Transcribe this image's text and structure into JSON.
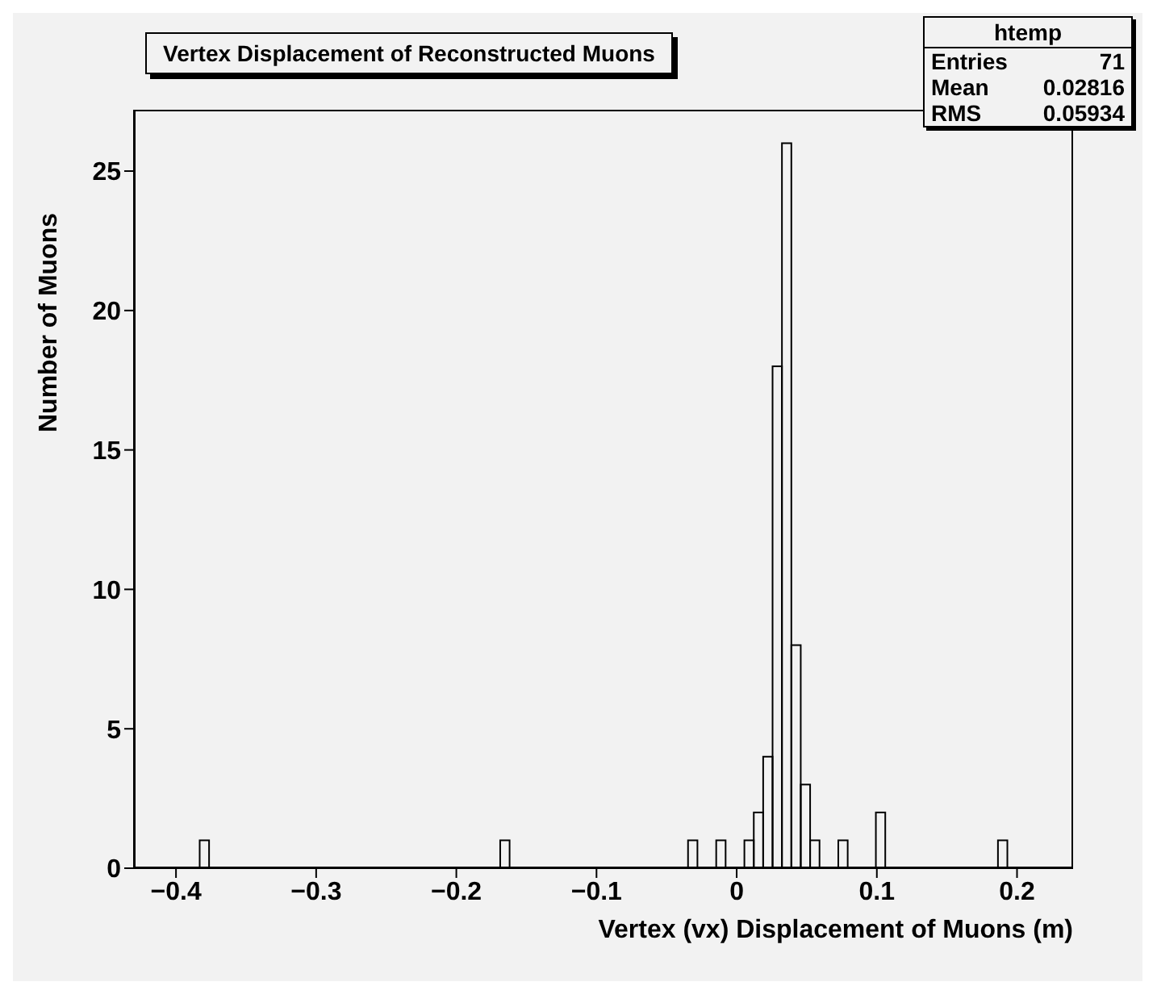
{
  "chart_data": {
    "type": "histogram",
    "title": "Vertex Displacement of Reconstructed Muons",
    "xlabel": "Vertex (vx) Displacement of Muons (m)",
    "ylabel": "Number of Muons",
    "bins": [
      -0.43,
      -0.4233,
      -0.4166,
      -0.4099,
      -0.4032,
      -0.3965,
      -0.3898,
      -0.3831,
      -0.3764,
      -0.3697,
      -0.363,
      -0.3563,
      -0.3496,
      -0.3429,
      -0.3362,
      -0.3295,
      -0.3228,
      -0.3161,
      -0.3094,
      -0.3027,
      -0.296,
      -0.2893,
      -0.2826,
      -0.2759,
      -0.2692,
      -0.2625,
      -0.2558,
      -0.2491,
      -0.2424,
      -0.2357,
      -0.229,
      -0.2223,
      -0.2156,
      -0.2089,
      -0.2022,
      -0.1955,
      -0.1888,
      -0.1821,
      -0.1754,
      -0.1687,
      -0.162,
      -0.1553,
      -0.1486,
      -0.1419,
      -0.1352,
      -0.1285,
      -0.1218,
      -0.1151,
      -0.1084,
      -0.1017,
      -0.095,
      -0.0883,
      -0.0816,
      -0.0749,
      -0.0682,
      -0.0615,
      -0.0548,
      -0.0481,
      -0.0414,
      -0.0347,
      -0.028,
      -0.0213,
      -0.0146,
      -0.0079,
      -0.0012,
      0.0055,
      0.0122,
      0.0189,
      0.0256,
      0.0323,
      0.039,
      0.0457,
      0.0524,
      0.0591,
      0.0658,
      0.0725,
      0.0792,
      0.0859,
      0.0926,
      0.0993,
      0.106,
      0.1127,
      0.1194,
      0.1261,
      0.1328,
      0.1395,
      0.1462,
      0.1529,
      0.1596,
      0.1663,
      0.173,
      0.1797,
      0.1864,
      0.1931,
      0.1998,
      0.2065,
      0.2132,
      0.2199,
      0.2266,
      0.2333,
      0.24
    ],
    "values": [
      0,
      0,
      0,
      0,
      0,
      0,
      0,
      1,
      0,
      0,
      0,
      0,
      0,
      0,
      0,
      0,
      0,
      0,
      0,
      0,
      0,
      0,
      0,
      0,
      0,
      0,
      0,
      0,
      0,
      0,
      0,
      0,
      0,
      0,
      0,
      0,
      0,
      0,
      0,
      1,
      0,
      0,
      0,
      0,
      0,
      0,
      0,
      0,
      0,
      0,
      0,
      0,
      0,
      0,
      0,
      0,
      0,
      0,
      0,
      1,
      0,
      0,
      1,
      0,
      0,
      1,
      2,
      4,
      18,
      26,
      8,
      3,
      1,
      0,
      0,
      1,
      0,
      0,
      0,
      2,
      0,
      0,
      0,
      0,
      0,
      0,
      0,
      0,
      0,
      0,
      0,
      0,
      1,
      0,
      0,
      0,
      0,
      0,
      0,
      0
    ],
    "color": "#000000",
    "xlim": [
      -0.43,
      0.24
    ],
    "xticks": [
      -0.4,
      -0.3,
      -0.2,
      -0.1,
      0,
      0.1,
      0.2
    ],
    "ylim": [
      0,
      27.2
    ],
    "yticks": [
      0,
      5,
      10,
      15,
      20,
      25
    ],
    "grid": false,
    "legend": false,
    "annotations": [
      "htemp",
      "Entries",
      "71",
      "Mean",
      "0.02816",
      "RMS",
      "0.05934"
    ]
  }
}
